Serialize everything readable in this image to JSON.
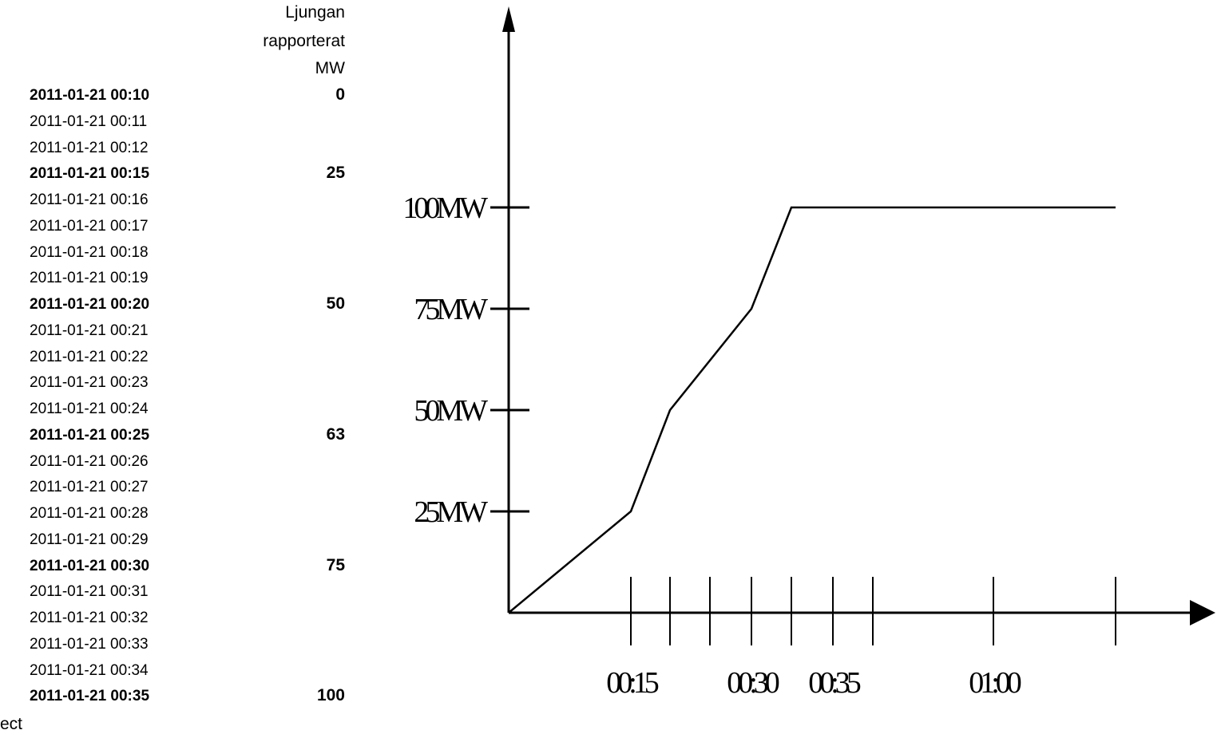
{
  "table": {
    "header_lines": [
      "Ljungan",
      "rapporterat",
      "MW"
    ],
    "rows": [
      {
        "time": "2011-01-21 00:10",
        "value": "0",
        "bold": true
      },
      {
        "time": "2011-01-21 00:11",
        "value": "",
        "bold": false
      },
      {
        "time": "2011-01-21 00:12",
        "value": "",
        "bold": false
      },
      {
        "time": "2011-01-21 00:15",
        "value": "25",
        "bold": true
      },
      {
        "time": "2011-01-21 00:16",
        "value": "",
        "bold": false
      },
      {
        "time": "2011-01-21 00:17",
        "value": "",
        "bold": false
      },
      {
        "time": "2011-01-21 00:18",
        "value": "",
        "bold": false
      },
      {
        "time": "2011-01-21 00:19",
        "value": "",
        "bold": false
      },
      {
        "time": "2011-01-21 00:20",
        "value": "50",
        "bold": true
      },
      {
        "time": "2011-01-21 00:21",
        "value": "",
        "bold": false
      },
      {
        "time": "2011-01-21 00:22",
        "value": "",
        "bold": false
      },
      {
        "time": "2011-01-21 00:23",
        "value": "",
        "bold": false
      },
      {
        "time": "2011-01-21 00:24",
        "value": "",
        "bold": false
      },
      {
        "time": "2011-01-21 00:25",
        "value": "63",
        "bold": true
      },
      {
        "time": "2011-01-21 00:26",
        "value": "",
        "bold": false
      },
      {
        "time": "2011-01-21 00:27",
        "value": "",
        "bold": false
      },
      {
        "time": "2011-01-21 00:28",
        "value": "",
        "bold": false
      },
      {
        "time": "2011-01-21 00:29",
        "value": "",
        "bold": false
      },
      {
        "time": "2011-01-21 00:30",
        "value": "75",
        "bold": true
      },
      {
        "time": "2011-01-21 00:31",
        "value": "",
        "bold": false
      },
      {
        "time": "2011-01-21 00:32",
        "value": "",
        "bold": false
      },
      {
        "time": "2011-01-21 00:33",
        "value": "",
        "bold": false
      },
      {
        "time": "2011-01-21 00:34",
        "value": "",
        "bold": false
      },
      {
        "time": "2011-01-21 00:35",
        "value": "100",
        "bold": true
      }
    ],
    "footer_text": "ect"
  },
  "chart_data": {
    "type": "line",
    "title": "",
    "xlabel": "",
    "ylabel": "",
    "grid": false,
    "x_tick_labels": [
      {
        "label": "00:15",
        "tick": 1
      },
      {
        "label": "00:30",
        "tick": 4
      },
      {
        "label": "00:35",
        "tick": 6
      },
      {
        "label": "01:00",
        "tick": 8
      }
    ],
    "x_tick_count": 9,
    "y_ticks": [
      {
        "label": "25MW",
        "value": 25
      },
      {
        "label": "50MW",
        "value": 50
      },
      {
        "label": "75MW",
        "value": 75
      },
      {
        "label": "100MW",
        "value": 100
      }
    ],
    "ylim": [
      0,
      100
    ],
    "series": [
      {
        "points": [
          {
            "tick": 0,
            "y": 0
          },
          {
            "tick": 1,
            "y": 25
          },
          {
            "tick": 2,
            "y": 50
          },
          {
            "tick": 4,
            "y": 75
          },
          {
            "tick": 5,
            "y": 100
          },
          {
            "tick": 9,
            "y": 100
          }
        ]
      }
    ],
    "colors": {
      "line": "#000000",
      "axis": "#000000"
    }
  }
}
